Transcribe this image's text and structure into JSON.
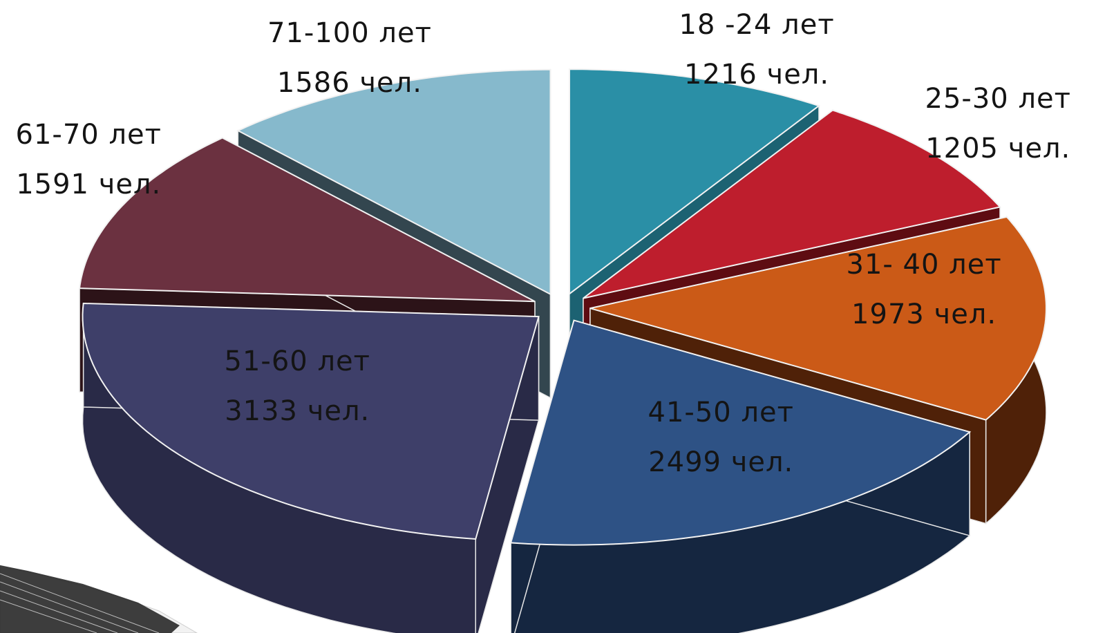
{
  "chart_data": {
    "type": "pie",
    "style": "3d-exploded",
    "unit": "чел.",
    "slices": [
      {
        "category": "18 -24 лет",
        "value": 1216,
        "value_label": "1216 чел.",
        "color": "#2a8fa6",
        "side_color": "#1c6272"
      },
      {
        "category": "25-30 лет",
        "value": 1205,
        "value_label": "1205 чел.",
        "color": "#be1e2d",
        "side_color": "#5e0c12"
      },
      {
        "category": "31- 40 лет",
        "value": 1973,
        "value_label": "1973 чел.",
        "color": "#cb5a17",
        "side_color": "#4f2108"
      },
      {
        "category": "41-50 лет",
        "value": 2499,
        "value_label": "2499 чел.",
        "color": "#2e5285",
        "side_color": "#152640"
      },
      {
        "category": "51-60 лет",
        "value": 3133,
        "value_label": "3133 чел.",
        "color": "#3e3f69",
        "side_color": "#292a47"
      },
      {
        "category": "61-70 лет",
        "value": 1591,
        "value_label": "1591 чел.",
        "color": "#6b3140",
        "side_color": "#2c1318"
      },
      {
        "category": "71-100 лет",
        "value": 1586,
        "value_label": "1586 чел.",
        "color": "#86b9cc",
        "side_color": "#33464f"
      }
    ]
  }
}
